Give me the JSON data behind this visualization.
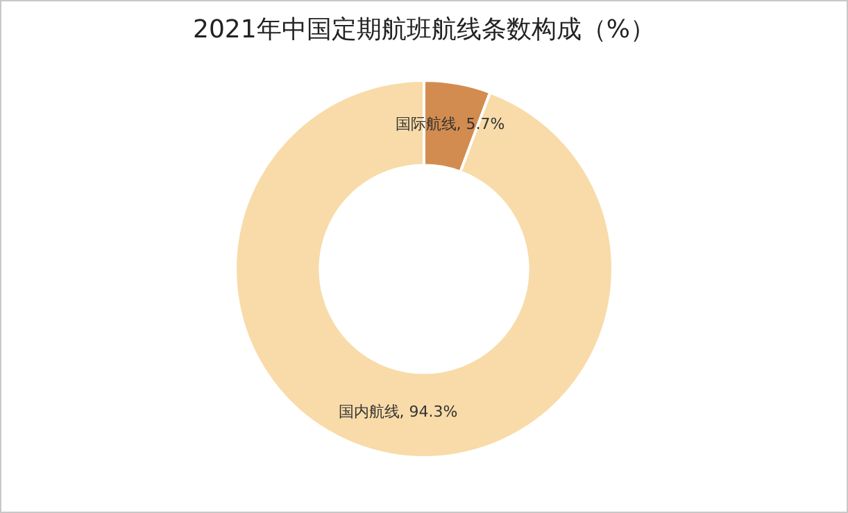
{
  "chart_data": {
    "type": "donut",
    "title": "2021年中国定期航班航线条数构成（%）",
    "categories": [
      "国际航线",
      "国内航线"
    ],
    "values": [
      5.7,
      94.3
    ],
    "colors": [
      "#d38c4f",
      "#f8dba8"
    ],
    "value_labels": [
      "5.7%",
      "94.3%"
    ],
    "legend": false
  }
}
